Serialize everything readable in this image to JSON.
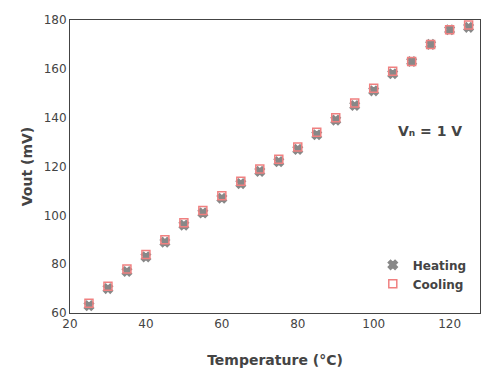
{
  "chart_data": {
    "type": "scatter",
    "xlabel": "Temperature (°C)",
    "ylabel": "Vout (mV)",
    "x": [
      25,
      30,
      35,
      40,
      45,
      50,
      55,
      60,
      65,
      70,
      75,
      80,
      85,
      90,
      95,
      100,
      105,
      110,
      115,
      120,
      125
    ],
    "series": [
      {
        "name": "Heating",
        "color": "#888888",
        "marker": "x",
        "values": [
          63,
          70,
          77,
          83,
          89,
          96,
          101,
          107,
          113,
          118,
          122,
          127,
          133,
          139,
          145,
          151,
          158,
          163,
          170,
          176,
          177
        ]
      },
      {
        "name": "Cooling",
        "color": "#f08080",
        "marker": "square-open",
        "values": [
          64,
          71,
          78,
          84,
          90,
          97,
          102,
          108,
          114,
          119,
          123,
          128,
          134,
          140,
          146,
          152,
          159,
          163,
          170,
          176,
          178
        ]
      }
    ],
    "xlim": [
      20,
      128
    ],
    "ylim": [
      60,
      180
    ],
    "xticks": [
      20,
      40,
      60,
      80,
      100,
      120
    ],
    "yticks": [
      60,
      80,
      100,
      120,
      140,
      160,
      180
    ],
    "grid": false,
    "legend": "lower right",
    "annotations": [
      "Vₙ = 1 V"
    ]
  }
}
